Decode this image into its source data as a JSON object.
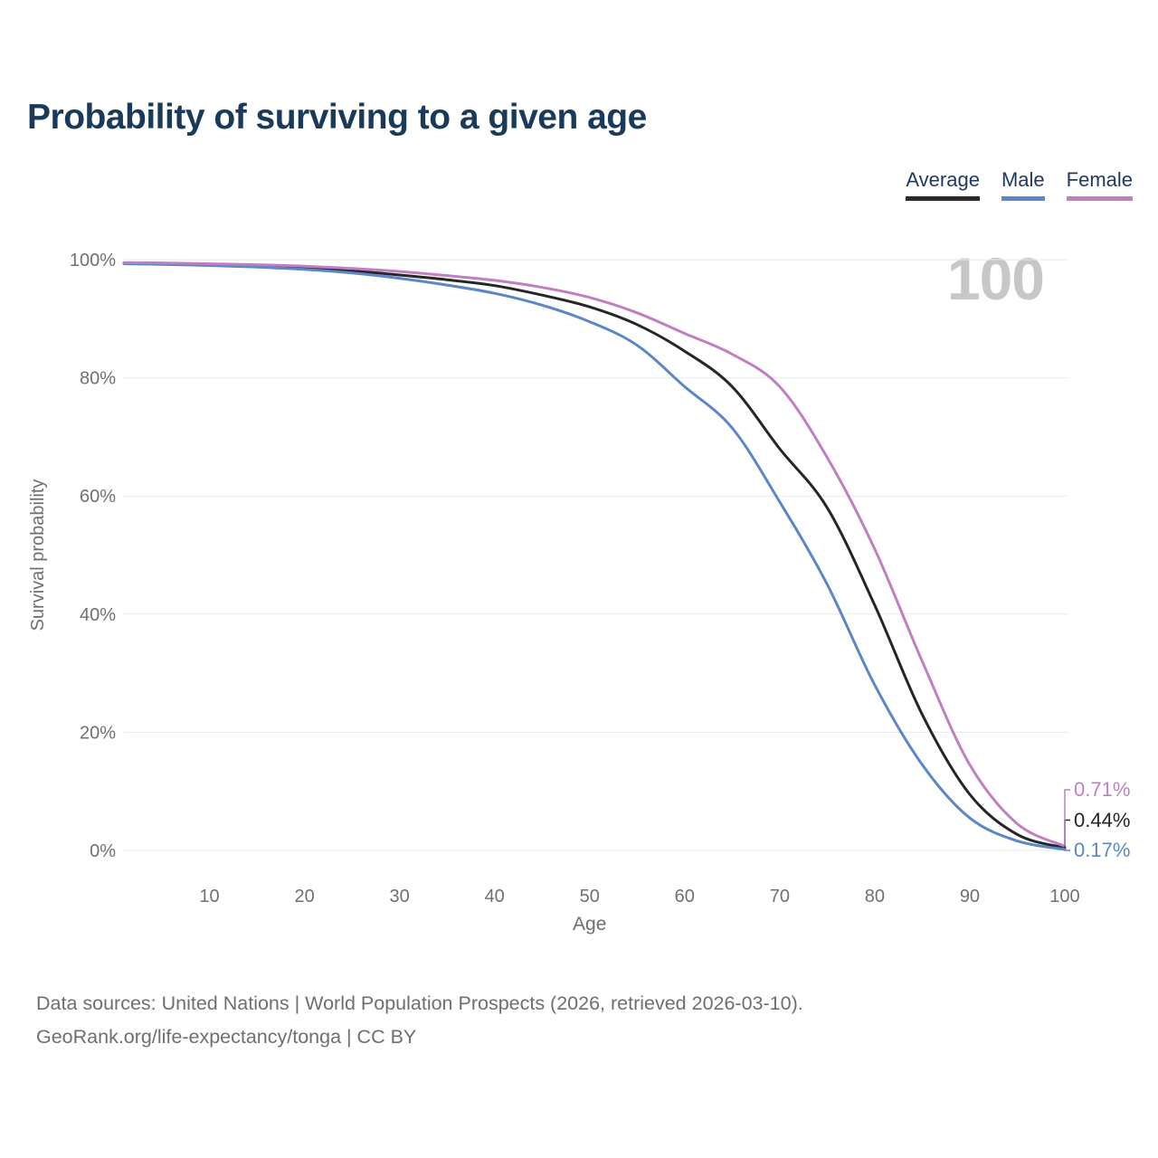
{
  "title": "Probability of surviving to a given age",
  "legend": [
    {
      "label": "Average",
      "color": "#2a2a2a"
    },
    {
      "label": "Male",
      "color": "#5b86c8"
    },
    {
      "label": "Female",
      "color": "#c07fc0"
    }
  ],
  "watermark": "100",
  "footer": {
    "line1": "Data sources: United Nations | World Population Prospects (2026, retrieved 2026-03-10).",
    "line2": "GeoRank.org/life-expectancy/tonga | CC BY"
  },
  "chart_data": {
    "type": "line",
    "title": "Probability of surviving to a given age",
    "xlabel": "Age",
    "ylabel": "Survival probability",
    "x_domain": [
      1,
      100
    ],
    "ylim": [
      0,
      100
    ],
    "x_ticks": [
      10,
      20,
      30,
      40,
      50,
      60,
      70,
      80,
      90,
      100
    ],
    "y_ticks": [
      0,
      20,
      40,
      60,
      80,
      100
    ],
    "y_tick_suffix": "%",
    "grid": "horizontal",
    "legend_position": "top-right",
    "ages": [
      1,
      5,
      10,
      15,
      20,
      25,
      30,
      35,
      40,
      45,
      50,
      55,
      60,
      65,
      70,
      75,
      80,
      85,
      90,
      95,
      100
    ],
    "series": [
      {
        "name": "Average",
        "color": "#262626",
        "end_label": "0.44%",
        "values": [
          99.4,
          99.3,
          99.15,
          99.0,
          98.6,
          98.1,
          97.4,
          96.6,
          95.6,
          94.0,
          92.0,
          89.0,
          84.5,
          78.5,
          68.0,
          58.0,
          41.5,
          23.0,
          9.5,
          2.7,
          0.44
        ]
      },
      {
        "name": "Male",
        "color": "#5b86c8",
        "end_label": "0.17%",
        "values": [
          99.3,
          99.2,
          99.0,
          98.75,
          98.35,
          97.75,
          96.85,
          95.7,
          94.3,
          92.3,
          89.5,
          85.5,
          78.5,
          71.5,
          59.0,
          45.0,
          28.0,
          14.5,
          5.5,
          1.6,
          0.17
        ]
      },
      {
        "name": "Female",
        "color": "#c07fc0",
        "end_label": "0.71%",
        "values": [
          99.5,
          99.45,
          99.3,
          99.15,
          98.9,
          98.5,
          98.0,
          97.3,
          96.5,
          95.3,
          93.6,
          91.0,
          87.5,
          84.0,
          78.5,
          66.5,
          51.0,
          32.0,
          14.5,
          4.5,
          0.71
        ]
      }
    ]
  }
}
